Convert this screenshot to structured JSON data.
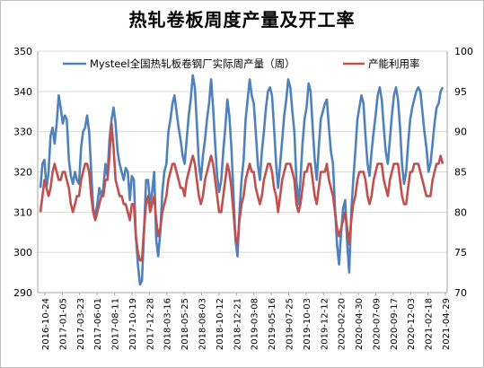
{
  "chart_data": {
    "type": "line",
    "title": "热轧卷板周度产量及开工率",
    "x_ticks": [
      "2016-10-24",
      "2017-01-05",
      "2017-03-23",
      "2017-06-01",
      "2017-08-11",
      "2017-10-19",
      "2017-12-28",
      "2018-03-16",
      "2018-05-25",
      "2018-08-03",
      "2018-10-12",
      "2018-12-21",
      "2019-03-08",
      "2019-05-16",
      "2019-07-25",
      "2019-10-03",
      "2019-12-12",
      "2020-02-20",
      "2020-04-30",
      "2020-07-09",
      "2020-09-17",
      "2020-12-03",
      "2021-02-18",
      "2021-04-29"
    ],
    "y_left": {
      "min": 290,
      "max": 350,
      "ticks": [
        290,
        300,
        310,
        320,
        330,
        340,
        350
      ]
    },
    "y_right": {
      "min": 70,
      "max": 100,
      "ticks": [
        70,
        75,
        80,
        85,
        90,
        95,
        100
      ]
    },
    "legend_position": "top",
    "grid": true,
    "series": [
      {
        "name": "Mysteel全国热轧板卷钢厂实际周产量（周）",
        "axis": "left",
        "color": "#4f81bd",
        "values": [
          316,
          322,
          323,
          316,
          320,
          329,
          331,
          327,
          332,
          339,
          336,
          332,
          334,
          333,
          323,
          319,
          317,
          320,
          318,
          317,
          326,
          330,
          331,
          334,
          330,
          320,
          311,
          309,
          312,
          316,
          314,
          316,
          322,
          319,
          328,
          333,
          336,
          332,
          325,
          322,
          320,
          318,
          321,
          320,
          313,
          319,
          318,
          304,
          297,
          292,
          293,
          305,
          318,
          318,
          312,
          315,
          320,
          303,
          299,
          305,
          315,
          320,
          322,
          330,
          333,
          337,
          339,
          335,
          331,
          328,
          324,
          322,
          328,
          334,
          338,
          344,
          341,
          332,
          322,
          318,
          324,
          328,
          333,
          337,
          343,
          336,
          327,
          319,
          315,
          318,
          325,
          331,
          338,
          334,
          326,
          315,
          303,
          299,
          310,
          318,
          323,
          333,
          338,
          343,
          339,
          337,
          330,
          322,
          318,
          325,
          330,
          336,
          340,
          341,
          339,
          331,
          322,
          316,
          322,
          328,
          334,
          338,
          343,
          341,
          335,
          330,
          318,
          312,
          318,
          327,
          333,
          336,
          342,
          340,
          331,
          323,
          318,
          326,
          333,
          335,
          337,
          338,
          331,
          325,
          322,
          311,
          302,
          297,
          305,
          311,
          313,
          302,
          295,
          310,
          318,
          325,
          333,
          336,
          339,
          337,
          329,
          322,
          319,
          325,
          330,
          334,
          339,
          341,
          338,
          331,
          325,
          322,
          328,
          334,
          339,
          341,
          338,
          331,
          322,
          317,
          320,
          327,
          333,
          336,
          338,
          340,
          341,
          340,
          335,
          330,
          326,
          320,
          322,
          327,
          332,
          336,
          337,
          340,
          341
        ],
        "note": "approximate visual trace"
      },
      {
        "name": "产能利用率",
        "axis": "right",
        "color": "#c0504d",
        "values": [
          80,
          82,
          84,
          83,
          82,
          83,
          85,
          86,
          85,
          84,
          84,
          85,
          85,
          84,
          83,
          81,
          80,
          81,
          82,
          82,
          84,
          85,
          86,
          86,
          85,
          82,
          80,
          79,
          80,
          81,
          82,
          82,
          84,
          84,
          87,
          91,
          88,
          84,
          83,
          82,
          82,
          81,
          81,
          80,
          79,
          81,
          81,
          77,
          75,
          74,
          74,
          78,
          81,
          82,
          80,
          81,
          82,
          79,
          77,
          78,
          80,
          81,
          82,
          84,
          85,
          86,
          86,
          85,
          84,
          83,
          83,
          82,
          84,
          85,
          86,
          87,
          86,
          84,
          82,
          81,
          82,
          84,
          85,
          86,
          87,
          86,
          84,
          82,
          80,
          80,
          82,
          84,
          86,
          85,
          83,
          80,
          77,
          76,
          79,
          81,
          82,
          84,
          85,
          86,
          85,
          85,
          83,
          82,
          81,
          82,
          84,
          85,
          86,
          86,
          85,
          83,
          82,
          80,
          82,
          84,
          85,
          86,
          86,
          86,
          85,
          84,
          81,
          80,
          81,
          83,
          85,
          85,
          86,
          86,
          84,
          82,
          81,
          83,
          85,
          85,
          85,
          86,
          84,
          83,
          82,
          80,
          78,
          77,
          78,
          79,
          80,
          78,
          76,
          79,
          81,
          82,
          84,
          85,
          85,
          85,
          84,
          82,
          81,
          82,
          84,
          85,
          86,
          86,
          86,
          84,
          83,
          82,
          84,
          85,
          86,
          86,
          86,
          84,
          82,
          81,
          81,
          83,
          85,
          85,
          86,
          86,
          86,
          85,
          84,
          83,
          82,
          82,
          82,
          84,
          85,
          86,
          86,
          87,
          86
        ],
        "note": "approximate visual trace"
      }
    ]
  }
}
